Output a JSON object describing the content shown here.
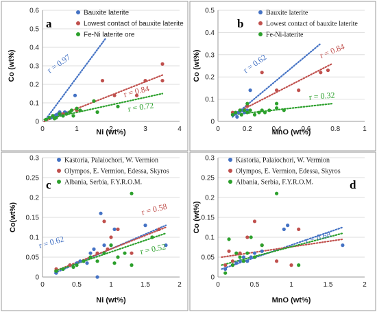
{
  "colors": {
    "blue": "#4472C4",
    "red": "#C0504D",
    "green": "#2CA02C"
  },
  "chart_data": [
    {
      "type": "scatter",
      "panel_label": "a",
      "xlabel": "Ni (wt%)",
      "ylabel": "Co (wt%)",
      "xlim": [
        0,
        4
      ],
      "ylim": [
        0,
        0.6
      ],
      "xticks": [
        "0",
        "1",
        "2",
        "3",
        "4"
      ],
      "yticks": [
        "0",
        "0.1",
        "0.2",
        "0.3",
        "0.4",
        "0.5",
        "0.6"
      ],
      "legend_position": "top-right",
      "legend_font": "sans",
      "series": [
        {
          "name": "Bauxite laterite",
          "color": "#4472C4",
          "points": [
            [
              0.25,
              0.02
            ],
            [
              0.35,
              0.03
            ],
            [
              0.4,
              0.035
            ],
            [
              0.45,
              0.04
            ],
            [
              0.5,
              0.05
            ],
            [
              0.55,
              0.04
            ],
            [
              0.6,
              0.03
            ],
            [
              0.65,
              0.05
            ],
            [
              0.7,
              0.045
            ],
            [
              0.95,
              0.14
            ],
            [
              0.3,
              0.025
            ]
          ],
          "trend": {
            "x": [
              0.05,
              1.85
            ],
            "y": [
              0.0,
              0.45
            ]
          },
          "r_label": "r = 0.97"
        },
        {
          "name": "Lowest contact of bauxite laterite",
          "color": "#C0504D",
          "points": [
            [
              0.3,
              0.03
            ],
            [
              0.6,
              0.04
            ],
            [
              0.8,
              0.05
            ],
            [
              1.0,
              0.06
            ],
            [
              1.5,
              0.11
            ],
            [
              1.75,
              0.22
            ],
            [
              2.1,
              0.14
            ],
            [
              2.75,
              0.14
            ],
            [
              3.0,
              0.22
            ],
            [
              3.5,
              0.31
            ],
            [
              3.5,
              0.22
            ]
          ],
          "trend": {
            "x": [
              0.05,
              3.5
            ],
            "y": [
              0.0,
              0.25
            ]
          },
          "r_label": "r = 0.84"
        },
        {
          "name": "Fe-Ni laterite ore",
          "color": "#2CA02C",
          "points": [
            [
              0.1,
              0.01
            ],
            [
              0.2,
              0.02
            ],
            [
              0.3,
              0.03
            ],
            [
              0.4,
              0.02
            ],
            [
              0.5,
              0.04
            ],
            [
              0.6,
              0.03
            ],
            [
              0.7,
              0.04
            ],
            [
              0.8,
              0.05
            ],
            [
              0.9,
              0.03
            ],
            [
              1.0,
              0.07
            ],
            [
              1.1,
              0.06
            ],
            [
              1.5,
              0.11
            ],
            [
              1.6,
              0.05
            ],
            [
              2.2,
              0.08
            ],
            [
              0.35,
              0.015
            ],
            [
              0.85,
              0.06
            ]
          ],
          "trend": {
            "x": [
              0.05,
              3.5
            ],
            "y": [
              0.01,
              0.15
            ]
          },
          "r_label": "r = 0.72"
        }
      ]
    },
    {
      "type": "scatter",
      "panel_label": "b",
      "xlabel": "MnO (wt%)",
      "ylabel": "Co (wt%)",
      "xlim": [
        0,
        1
      ],
      "ylim": [
        0,
        0.5
      ],
      "xticks": [
        "0",
        "0.2",
        "0.4",
        "0.6",
        "0.8",
        "1"
      ],
      "yticks": [
        "0",
        "0.1",
        "0.2",
        "0.3",
        "0.4",
        "0.5"
      ],
      "legend_position": "top-right",
      "legend_font": "serif",
      "series": [
        {
          "name": "Bauxite laterite",
          "color": "#4472C4",
          "points": [
            [
              0.1,
              0.03
            ],
            [
              0.12,
              0.035
            ],
            [
              0.14,
              0.04
            ],
            [
              0.15,
              0.045
            ],
            [
              0.17,
              0.05
            ],
            [
              0.18,
              0.04
            ],
            [
              0.2,
              0.05
            ],
            [
              0.22,
              0.14
            ],
            [
              0.13,
              0.02
            ]
          ],
          "trend": {
            "x": [
              0.1,
              0.7
            ],
            "y": [
              0.02,
              0.35
            ]
          },
          "r_label": "r = 0.62"
        },
        {
          "name": "Lowest contact of bauxite laterite",
          "color": "#C0504D",
          "points": [
            [
              0.1,
              0.04
            ],
            [
              0.15,
              0.05
            ],
            [
              0.2,
              0.07
            ],
            [
              0.3,
              0.22
            ],
            [
              0.4,
              0.14
            ],
            [
              0.55,
              0.14
            ],
            [
              0.7,
              0.22
            ],
            [
              0.75,
              0.23
            ]
          ],
          "trend": {
            "x": [
              0.1,
              0.78
            ],
            "y": [
              0.03,
              0.26
            ]
          },
          "r_label": "r = 0.84"
        },
        {
          "name": "Fe-Ni-laterite",
          "color": "#2CA02C",
          "points": [
            [
              0.1,
              0.03
            ],
            [
              0.12,
              0.04
            ],
            [
              0.15,
              0.05
            ],
            [
              0.18,
              0.05
            ],
            [
              0.2,
              0.04
            ],
            [
              0.22,
              0.05
            ],
            [
              0.25,
              0.03
            ],
            [
              0.3,
              0.05
            ],
            [
              0.32,
              0.04
            ],
            [
              0.35,
              0.05
            ],
            [
              0.4,
              0.06
            ],
            [
              0.45,
              0.05
            ],
            [
              0.4,
              0.08
            ],
            [
              0.2,
              0.08
            ],
            [
              0.28,
              0.04
            ],
            [
              0.16,
              0.03
            ]
          ],
          "trend": {
            "x": [
              0.1,
              0.78
            ],
            "y": [
              0.03,
              0.08
            ]
          },
          "r_label": "r = 0.32"
        }
      ]
    },
    {
      "type": "scatter",
      "panel_label": "c",
      "xlabel": "Ni (wt%)",
      "ylabel": "Co(wt%)",
      "xlim": [
        0,
        2
      ],
      "ylim": [
        0,
        0.3
      ],
      "xticks": [
        "0",
        "0.5",
        "1",
        "1.5",
        "2"
      ],
      "yticks": [
        "0",
        "0.05",
        "0.1",
        "0.15",
        "0.2",
        "0.25",
        "0.3"
      ],
      "legend_position": "top-right",
      "legend_font": "serif",
      "series": [
        {
          "name": "Kastoria, Palaiochori, W. Vermion",
          "color": "#4472C4",
          "points": [
            [
              0.2,
              0.01
            ],
            [
              0.3,
              0.02
            ],
            [
              0.4,
              0.03
            ],
            [
              0.5,
              0.035
            ],
            [
              0.6,
              0.04
            ],
            [
              0.7,
              0.06
            ],
            [
              0.75,
              0.07
            ],
            [
              0.8,
              0.0
            ],
            [
              0.85,
              0.16
            ],
            [
              0.9,
              0.08
            ],
            [
              1.0,
              0.08
            ],
            [
              1.05,
              0.12
            ],
            [
              1.5,
              0.13
            ],
            [
              1.8,
              0.08
            ],
            [
              0.55,
              0.04
            ],
            [
              0.65,
              0.035
            ]
          ],
          "trend": {
            "x": [
              0.18,
              1.8
            ],
            "y": [
              0.01,
              0.13
            ]
          },
          "r_label": "r = 0.62"
        },
        {
          "name": "Olympos, E. Vermion, Edessa, Skyros",
          "color": "#C0504D",
          "points": [
            [
              0.2,
              0.02
            ],
            [
              0.4,
              0.03
            ],
            [
              0.6,
              0.04
            ],
            [
              0.8,
              0.06
            ],
            [
              0.9,
              0.14
            ],
            [
              1.0,
              0.1
            ],
            [
              1.1,
              0.12
            ],
            [
              1.3,
              0.06
            ],
            [
              1.6,
              0.1
            ],
            [
              1.7,
              0.12
            ],
            [
              0.95,
              0.07
            ]
          ],
          "trend": {
            "x": [
              0.18,
              1.8
            ],
            "y": [
              0.015,
              0.125
            ]
          },
          "r_label": "r = 0.58"
        },
        {
          "name": "Albania, Serbia, F.Y.R.O.M.",
          "color": "#2CA02C",
          "points": [
            [
              0.2,
              0.015
            ],
            [
              0.3,
              0.02
            ],
            [
              0.5,
              0.03
            ],
            [
              0.6,
              0.04
            ],
            [
              0.7,
              0.05
            ],
            [
              0.8,
              0.04
            ],
            [
              0.9,
              0.06
            ],
            [
              1.0,
              0.08
            ],
            [
              1.1,
              0.05
            ],
            [
              1.2,
              0.06
            ],
            [
              1.3,
              0.21
            ],
            [
              1.3,
              0.03
            ],
            [
              1.6,
              0.1
            ],
            [
              0.45,
              0.025
            ],
            [
              1.05,
              0.035
            ]
          ],
          "trend": {
            "x": [
              0.18,
              1.8
            ],
            "y": [
              0.015,
              0.11
            ]
          },
          "r_label": "r = 0.52"
        }
      ]
    },
    {
      "type": "scatter",
      "panel_label": "d",
      "xlabel": "MnO (wt%)",
      "ylabel": "Co (wt%)",
      "xlim": [
        0,
        2
      ],
      "ylim": [
        0,
        0.3
      ],
      "xticks": [
        "0",
        "0.5",
        "1",
        "1.5",
        "2"
      ],
      "yticks": [
        "0",
        "0.05",
        "0.1",
        "0.15",
        "0.2",
        "0.25",
        "0.3"
      ],
      "legend_position": "top-right",
      "legend_font": "serif",
      "series": [
        {
          "name": "Kastoria, Palaiochori, W. Vermion",
          "color": "#4472C4",
          "points": [
            [
              0.1,
              0.02
            ],
            [
              0.2,
              0.03
            ],
            [
              0.25,
              0.035
            ],
            [
              0.3,
              0.04
            ],
            [
              0.35,
              0.05
            ],
            [
              0.4,
              0.04
            ],
            [
              0.5,
              0.06
            ],
            [
              0.6,
              0.065
            ],
            [
              0.9,
              0.12
            ],
            [
              0.95,
              0.13
            ],
            [
              1.7,
              0.08
            ],
            [
              0.45,
              0.05
            ]
          ],
          "trend": {
            "x": [
              0.05,
              1.7
            ],
            "y": [
              0.02,
              0.125
            ]
          },
          "r_label": "r = 0.68"
        },
        {
          "name": "Olympos, E. Vermion, Edessa, Skyros",
          "color": "#C0504D",
          "points": [
            [
              0.1,
              0.03
            ],
            [
              0.2,
              0.04
            ],
            [
              0.3,
              0.06
            ],
            [
              0.4,
              0.1
            ],
            [
              0.5,
              0.14
            ],
            [
              0.6,
              0.08
            ],
            [
              0.8,
              0.04
            ],
            [
              1.0,
              0.03
            ],
            [
              1.1,
              0.12
            ],
            [
              0.15,
              0.065
            ]
          ],
          "trend": {
            "x": [
              0.05,
              1.7
            ],
            "y": [
              0.05,
              0.095
            ]
          },
          "r_label": ""
        },
        {
          "name": "Albania, Serbia, F.Y.R.O.M.",
          "color": "#2CA02C",
          "points": [
            [
              0.1,
              0.01
            ],
            [
              0.2,
              0.03
            ],
            [
              0.25,
              0.06
            ],
            [
              0.3,
              0.05
            ],
            [
              0.4,
              0.06
            ],
            [
              0.45,
              0.1
            ],
            [
              0.5,
              0.05
            ],
            [
              0.6,
              0.08
            ],
            [
              0.8,
              0.21
            ],
            [
              1.1,
              0.03
            ],
            [
              0.15,
              0.095
            ],
            [
              0.35,
              0.04
            ]
          ],
          "trend": {
            "x": [
              0.05,
              1.7
            ],
            "y": [
              0.03,
              0.11
            ]
          },
          "r_label": ""
        }
      ]
    }
  ]
}
